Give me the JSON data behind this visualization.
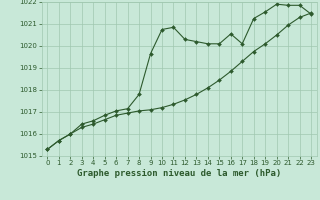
{
  "title": "Graphe pression niveau de la mer (hPa)",
  "xlim": [
    -0.5,
    23.5
  ],
  "ylim": [
    1015,
    1022
  ],
  "xticks": [
    0,
    1,
    2,
    3,
    4,
    5,
    6,
    7,
    8,
    9,
    10,
    11,
    12,
    13,
    14,
    15,
    16,
    17,
    18,
    19,
    20,
    21,
    22,
    23
  ],
  "yticks": [
    1015,
    1016,
    1017,
    1018,
    1019,
    1020,
    1021,
    1022
  ],
  "background_color": "#c8e8d8",
  "grid_color": "#a0c8b0",
  "line_color": "#2d5a2d",
  "series1_x": [
    0,
    1,
    2,
    3,
    4,
    5,
    6,
    7,
    8,
    9,
    10,
    11,
    12,
    13,
    14,
    15,
    16,
    17,
    18,
    19,
    20,
    21,
    22,
    23
  ],
  "series1_y": [
    1015.3,
    1015.7,
    1016.0,
    1016.45,
    1016.6,
    1016.85,
    1017.05,
    1017.15,
    1017.8,
    1019.65,
    1020.75,
    1020.85,
    1020.3,
    1020.2,
    1020.1,
    1020.1,
    1020.55,
    1020.1,
    1021.25,
    1021.55,
    1021.9,
    1021.85,
    1021.85,
    1021.45
  ],
  "series2_x": [
    0,
    1,
    2,
    3,
    4,
    5,
    6,
    7,
    8,
    9,
    10,
    11,
    12,
    13,
    14,
    15,
    16,
    17,
    18,
    19,
    20,
    21,
    22,
    23
  ],
  "series2_y": [
    1015.3,
    1015.7,
    1016.0,
    1016.3,
    1016.45,
    1016.65,
    1016.85,
    1016.95,
    1017.05,
    1017.1,
    1017.2,
    1017.35,
    1017.55,
    1017.8,
    1018.1,
    1018.45,
    1018.85,
    1019.3,
    1019.75,
    1020.1,
    1020.5,
    1020.95,
    1021.3,
    1021.5
  ],
  "marker": "D",
  "markersize": 2.0,
  "linewidth": 0.8,
  "title_fontsize": 6.5,
  "tick_fontsize": 5.0
}
